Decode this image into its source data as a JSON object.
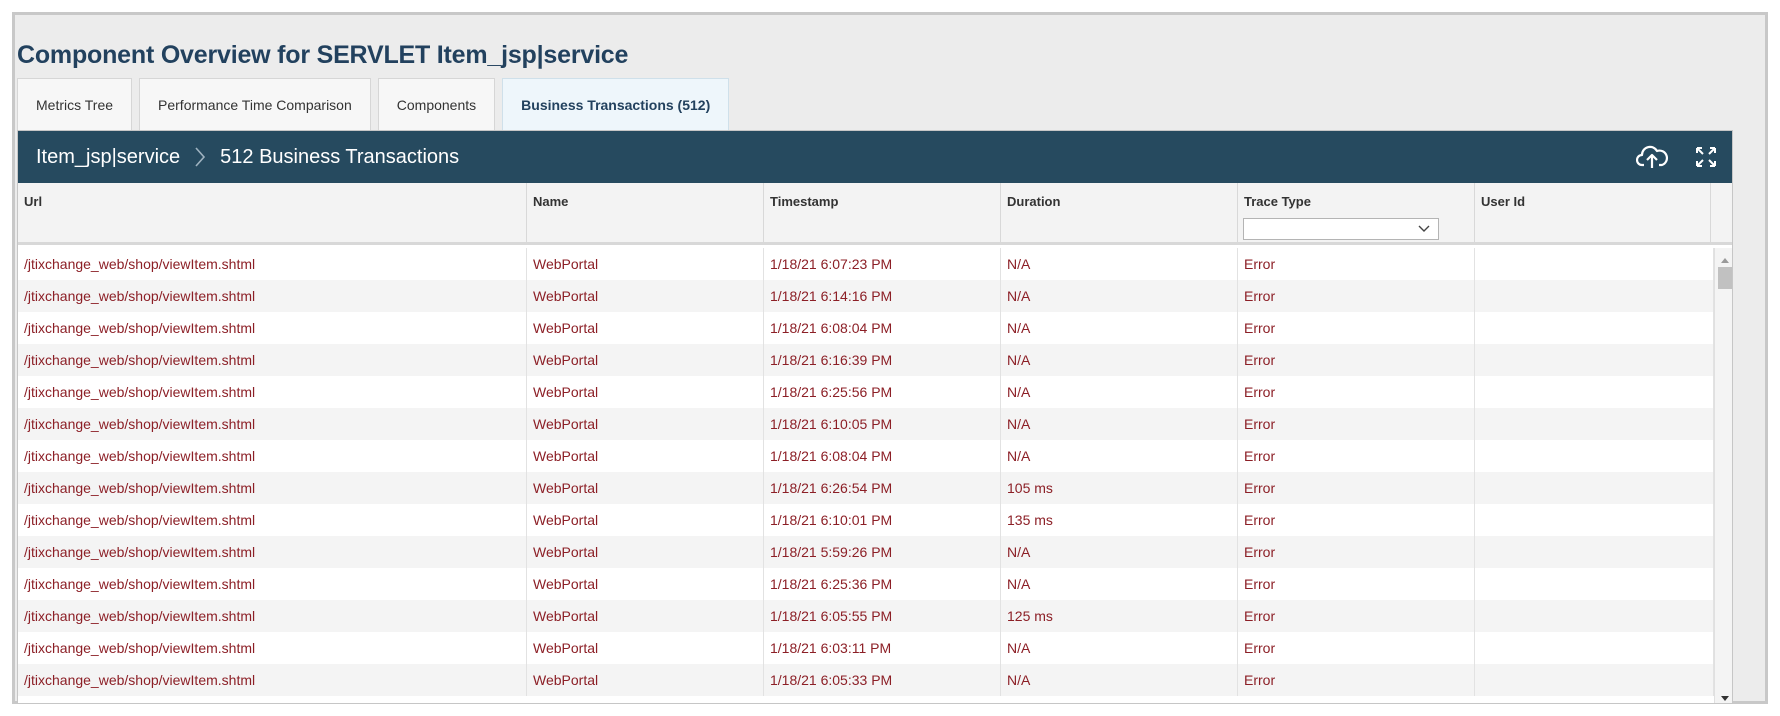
{
  "page_title": "Component Overview for SERVLET Item_jsp|service",
  "tabs": [
    {
      "label": "Metrics Tree"
    },
    {
      "label": "Performance Time Comparison"
    },
    {
      "label": "Components"
    },
    {
      "label": "Business Transactions (512)"
    }
  ],
  "active_tab": "Business Transactions (512)",
  "panel": {
    "breadcrumb": [
      "Item_jsp|service",
      "512 Business Transactions"
    ],
    "icons": [
      "cloud-upload-icon",
      "fullscreen-icon"
    ],
    "header_bg": "#264a5f"
  },
  "table": {
    "columns": [
      "Url",
      "Name",
      "Timestamp",
      "Duration",
      "Trace Type",
      "User Id"
    ],
    "trace_type_filter": "",
    "rows": [
      [
        "/jtixchange_web/shop/viewItem.shtml",
        "WebPortal",
        "1/18/21 6:07:23 PM",
        "N/A",
        "Error",
        ""
      ],
      [
        "/jtixchange_web/shop/viewItem.shtml",
        "WebPortal",
        "1/18/21 6:14:16 PM",
        "N/A",
        "Error",
        ""
      ],
      [
        "/jtixchange_web/shop/viewItem.shtml",
        "WebPortal",
        "1/18/21 6:08:04 PM",
        "N/A",
        "Error",
        ""
      ],
      [
        "/jtixchange_web/shop/viewItem.shtml",
        "WebPortal",
        "1/18/21 6:16:39 PM",
        "N/A",
        "Error",
        ""
      ],
      [
        "/jtixchange_web/shop/viewItem.shtml",
        "WebPortal",
        "1/18/21 6:25:56 PM",
        "N/A",
        "Error",
        ""
      ],
      [
        "/jtixchange_web/shop/viewItem.shtml",
        "WebPortal",
        "1/18/21 6:10:05 PM",
        "N/A",
        "Error",
        ""
      ],
      [
        "/jtixchange_web/shop/viewItem.shtml",
        "WebPortal",
        "1/18/21 6:08:04 PM",
        "N/A",
        "Error",
        ""
      ],
      [
        "/jtixchange_web/shop/viewItem.shtml",
        "WebPortal",
        "1/18/21 6:26:54 PM",
        "105 ms",
        "Error",
        ""
      ],
      [
        "/jtixchange_web/shop/viewItem.shtml",
        "WebPortal",
        "1/18/21 6:10:01 PM",
        "135 ms",
        "Error",
        ""
      ],
      [
        "/jtixchange_web/shop/viewItem.shtml",
        "WebPortal",
        "1/18/21 5:59:26 PM",
        "N/A",
        "Error",
        ""
      ],
      [
        "/jtixchange_web/shop/viewItem.shtml",
        "WebPortal",
        "1/18/21 6:25:36 PM",
        "N/A",
        "Error",
        ""
      ],
      [
        "/jtixchange_web/shop/viewItem.shtml",
        "WebPortal",
        "1/18/21 6:05:55 PM",
        "125 ms",
        "Error",
        ""
      ],
      [
        "/jtixchange_web/shop/viewItem.shtml",
        "WebPortal",
        "1/18/21 6:03:11 PM",
        "N/A",
        "Error",
        ""
      ],
      [
        "/jtixchange_web/shop/viewItem.shtml",
        "WebPortal",
        "1/18/21 6:05:33 PM",
        "N/A",
        "Error",
        ""
      ]
    ]
  },
  "colors": {
    "title": "#22415e",
    "cell_text": "#8c1f26",
    "row_alt": "#f4f4f4"
  }
}
